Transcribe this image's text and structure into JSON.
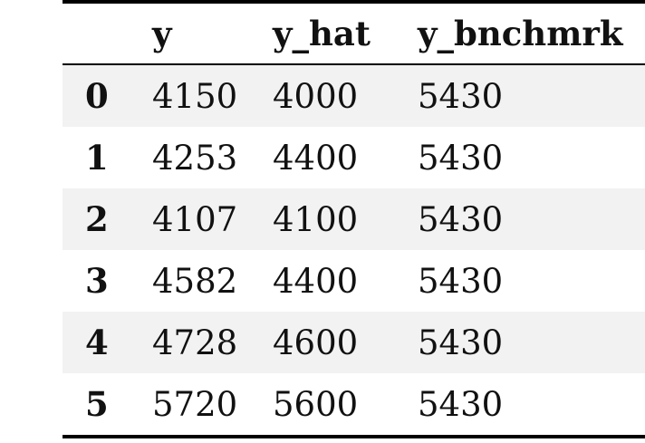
{
  "table": {
    "columns": [
      "",
      "y",
      "y_hat",
      "y_bnchmrk"
    ],
    "rows": [
      {
        "index": "0",
        "y": "4150",
        "y_hat": "4000",
        "y_bnchmrk": "5430"
      },
      {
        "index": "1",
        "y": "4253",
        "y_hat": "4400",
        "y_bnchmrk": "5430"
      },
      {
        "index": "2",
        "y": "4107",
        "y_hat": "4100",
        "y_bnchmrk": "5430"
      },
      {
        "index": "3",
        "y": "4582",
        "y_hat": "4400",
        "y_bnchmrk": "5430"
      },
      {
        "index": "4",
        "y": "4728",
        "y_hat": "4600",
        "y_bnchmrk": "5430"
      },
      {
        "index": "5",
        "y": "5720",
        "y_hat": "5600",
        "y_bnchmrk": "5430"
      }
    ]
  }
}
